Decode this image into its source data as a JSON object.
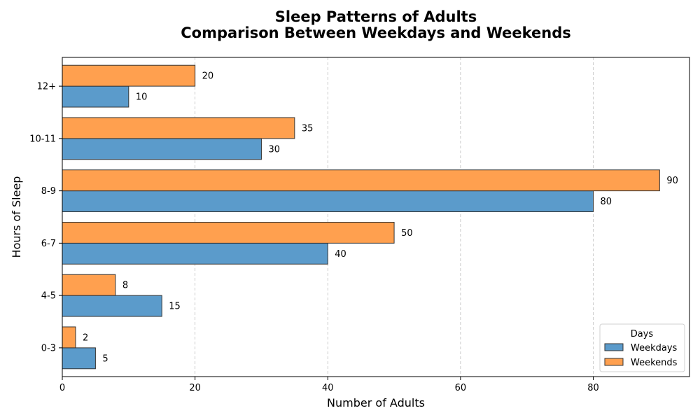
{
  "chart_data": {
    "type": "bar",
    "orientation": "horizontal",
    "title": "Sleep Patterns of Adults",
    "subtitle": "Comparison Between Weekdays and Weekends",
    "xlabel": "Number of Adults",
    "ylabel": "Hours of Sleep",
    "categories": [
      "0-3",
      "4-5",
      "6-7",
      "8-9",
      "10-11",
      "12+"
    ],
    "series": [
      {
        "name": "Weekdays",
        "values": [
          5,
          15,
          40,
          80,
          30,
          10
        ],
        "color": "#5b9bcb"
      },
      {
        "name": "Weekends",
        "values": [
          2,
          8,
          50,
          90,
          35,
          20
        ],
        "color": "#ffa04f"
      }
    ],
    "xlim": [
      0,
      94.5
    ],
    "xticks": [
      0,
      20,
      40,
      60,
      80
    ],
    "grid": "vertical dashed",
    "legend": {
      "title": "Days",
      "placement": "lower-right"
    }
  }
}
